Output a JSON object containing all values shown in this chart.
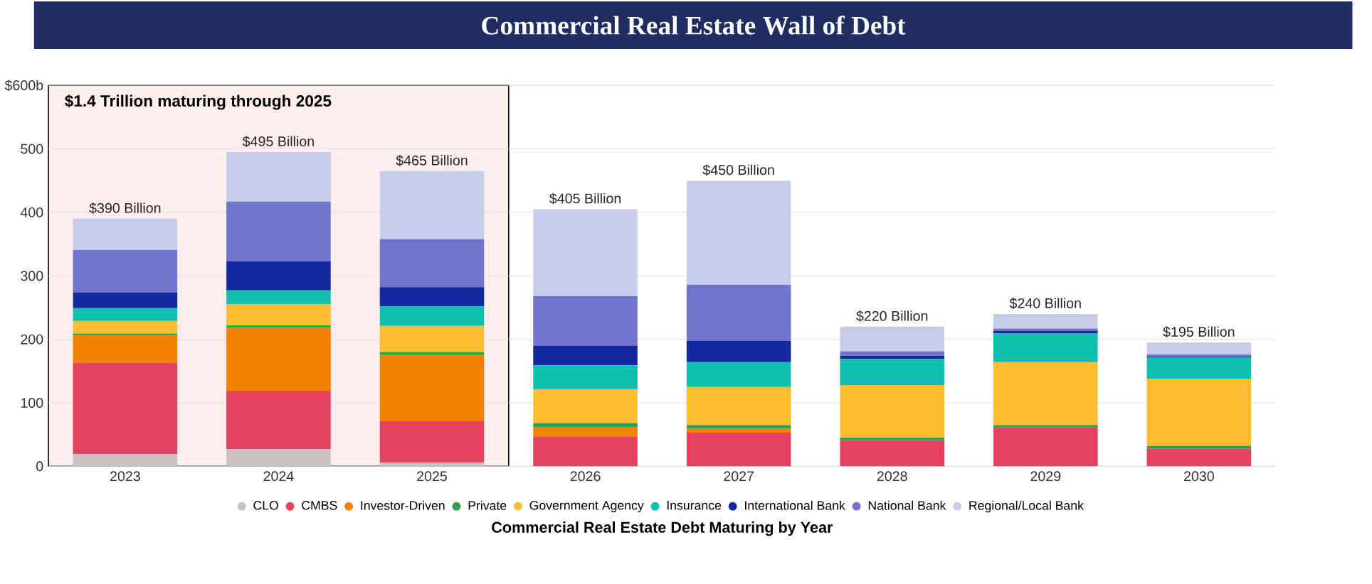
{
  "chart_data": {
    "type": "bar",
    "stacked": true,
    "title": "Commercial Real Estate Wall of Debt",
    "xlabel": "Commercial Real Estate Debt Maturing by Year",
    "categories": [
      "2023",
      "2024",
      "2025",
      "2026",
      "2027",
      "2028",
      "2029",
      "2030"
    ],
    "series": [
      {
        "name": "CLO",
        "color": "#c9c0c0",
        "values": [
          19,
          27,
          6,
          0,
          0,
          0,
          0,
          0
        ]
      },
      {
        "name": "CMBS",
        "color": "#e5405e",
        "values": [
          144,
          92,
          65,
          47,
          53,
          41,
          61,
          28
        ]
      },
      {
        "name": "Investor-Driven",
        "color": "#f08300",
        "values": [
          43,
          99,
          105,
          15,
          6,
          0,
          0,
          0
        ]
      },
      {
        "name": "Private",
        "color": "#2e9e4f",
        "values": [
          3,
          4,
          4,
          6,
          6,
          4,
          4,
          4
        ]
      },
      {
        "name": "Government Agency",
        "color": "#fdbd2e",
        "values": [
          20,
          33,
          41,
          53,
          60,
          83,
          99,
          106
        ]
      },
      {
        "name": "Insurance",
        "color": "#10bfae",
        "values": [
          20,
          22,
          31,
          38,
          39,
          41,
          45,
          33
        ]
      },
      {
        "name": "International Bank",
        "color": "#1428a0",
        "values": [
          25,
          46,
          30,
          31,
          34,
          5,
          4,
          2
        ]
      },
      {
        "name": "National Bank",
        "color": "#7075cc",
        "values": [
          67,
          94,
          76,
          78,
          88,
          7,
          4,
          3
        ]
      },
      {
        "name": "Regional/Local Bank",
        "color": "#c6cde9",
        "values": [
          49,
          78,
          107,
          137,
          164,
          39,
          23,
          19
        ]
      }
    ],
    "totals": [
      "$390 Billion",
      "$495 Billion",
      "$465 Billion",
      "$405 Billion",
      "$450 Billion",
      "$220 Billion",
      "$240 Billion",
      "$195 Billion"
    ],
    "ylim": [
      0,
      600
    ],
    "yticks": [
      0,
      100,
      200,
      300,
      400,
      500,
      {
        "value": 600,
        "label": "$600b"
      }
    ],
    "grid": "y",
    "legend": "bottom",
    "bands": [
      {
        "axis": "x",
        "from": "2023",
        "to": "2025",
        "label": "$1.4 Trillion maturing through 2025",
        "color": "#fdeeee"
      }
    ]
  }
}
